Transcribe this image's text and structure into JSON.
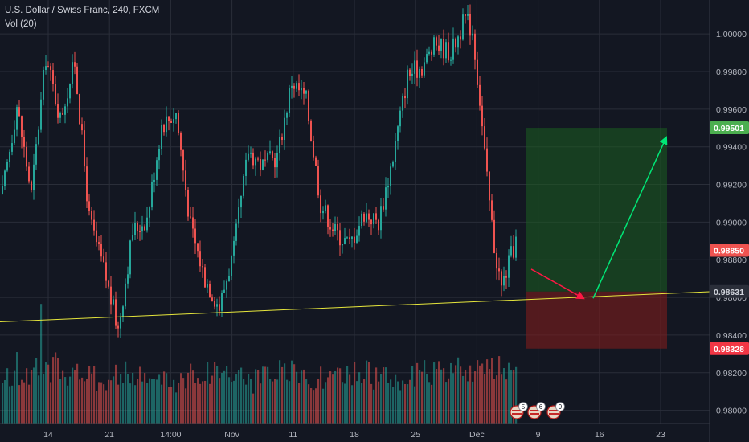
{
  "header": {
    "symbol_title": "U.S. Dollar / Swiss Franc, 240, FXCM",
    "volume_label": "Vol (20)"
  },
  "colors": {
    "background": "#131722",
    "up_candle": "#26a69a",
    "down_candle": "#ef5350",
    "trendline": "#e6e63c",
    "target_zone": "#1b5e20",
    "stop_zone": "#7f1d1d",
    "target_badge": "#4caf50",
    "stop_badge": "#f23645",
    "current_price_badge": "#ef5350",
    "entry_badge": "#2a2e39",
    "green_arrow": "#00e676",
    "red_arrow": "#ff1744"
  },
  "chart_data": {
    "type": "candlestick",
    "symbol": "U.S. Dollar / Swiss Franc",
    "timeframe": "240",
    "source": "FXCM",
    "x_tick_labels": [
      "14",
      "21",
      "14:00",
      "Nov",
      "11",
      "18",
      "25",
      "Dec",
      "9",
      "16",
      "23"
    ],
    "y_tick_labels": [
      "1.00000",
      "0.99800",
      "0.99600",
      "0.99400",
      "0.99200",
      "0.99000",
      "0.98800",
      "0.98600",
      "0.98400",
      "0.98200",
      "0.98000"
    ],
    "ylim": [
      0.9793,
      1.0018
    ],
    "grid": true,
    "price_levels": {
      "target": "0.99501",
      "current": "0.98850",
      "entry": "0.98631",
      "stop": "0.98328"
    },
    "trendline": {
      "from_price": 0.9847,
      "to_price": 0.9863
    },
    "event_badges": [
      "5",
      "6",
      "9"
    ],
    "price_path": [
      [
        0,
        0.9915
      ],
      [
        2,
        0.9962
      ],
      [
        4,
        0.9915
      ],
      [
        6,
        0.9988
      ],
      [
        8,
        0.9955
      ],
      [
        10,
        0.9985
      ],
      [
        12,
        0.9902
      ],
      [
        14,
        0.9875
      ],
      [
        16,
        0.9843
      ],
      [
        18,
        0.9895
      ],
      [
        20,
        0.9902
      ],
      [
        22,
        0.9952
      ],
      [
        24,
        0.9958
      ],
      [
        26,
        0.9898
      ],
      [
        28,
        0.987
      ],
      [
        30,
        0.9855
      ],
      [
        32,
        0.9885
      ],
      [
        34,
        0.9938
      ],
      [
        36,
        0.993
      ],
      [
        38,
        0.9935
      ],
      [
        40,
        0.9975
      ],
      [
        42,
        0.9965
      ],
      [
        44,
        0.991
      ],
      [
        46,
        0.9895
      ],
      [
        48,
        0.9888
      ],
      [
        50,
        0.9905
      ],
      [
        52,
        0.99
      ],
      [
        54,
        0.9935
      ],
      [
        56,
        0.9978
      ],
      [
        58,
        0.9983
      ],
      [
        60,
        0.9995
      ],
      [
        62,
        0.999
      ],
      [
        64,
        1.0008
      ],
      [
        65,
        1.0002
      ],
      [
        66,
        0.9965
      ],
      [
        67,
        0.9922
      ],
      [
        68,
        0.9887
      ],
      [
        69,
        0.9865
      ],
      [
        70,
        0.9878
      ],
      [
        71,
        0.989
      ]
    ],
    "volume": {
      "base": [
        37,
        42,
        48,
        55,
        46,
        40,
        38,
        44,
        40,
        37,
        35,
        42,
        46,
        50,
        44,
        36,
        38,
        46,
        42,
        40,
        37,
        44,
        48,
        40,
        37,
        42,
        45,
        46,
        52,
        46,
        50,
        42
      ]
    }
  }
}
